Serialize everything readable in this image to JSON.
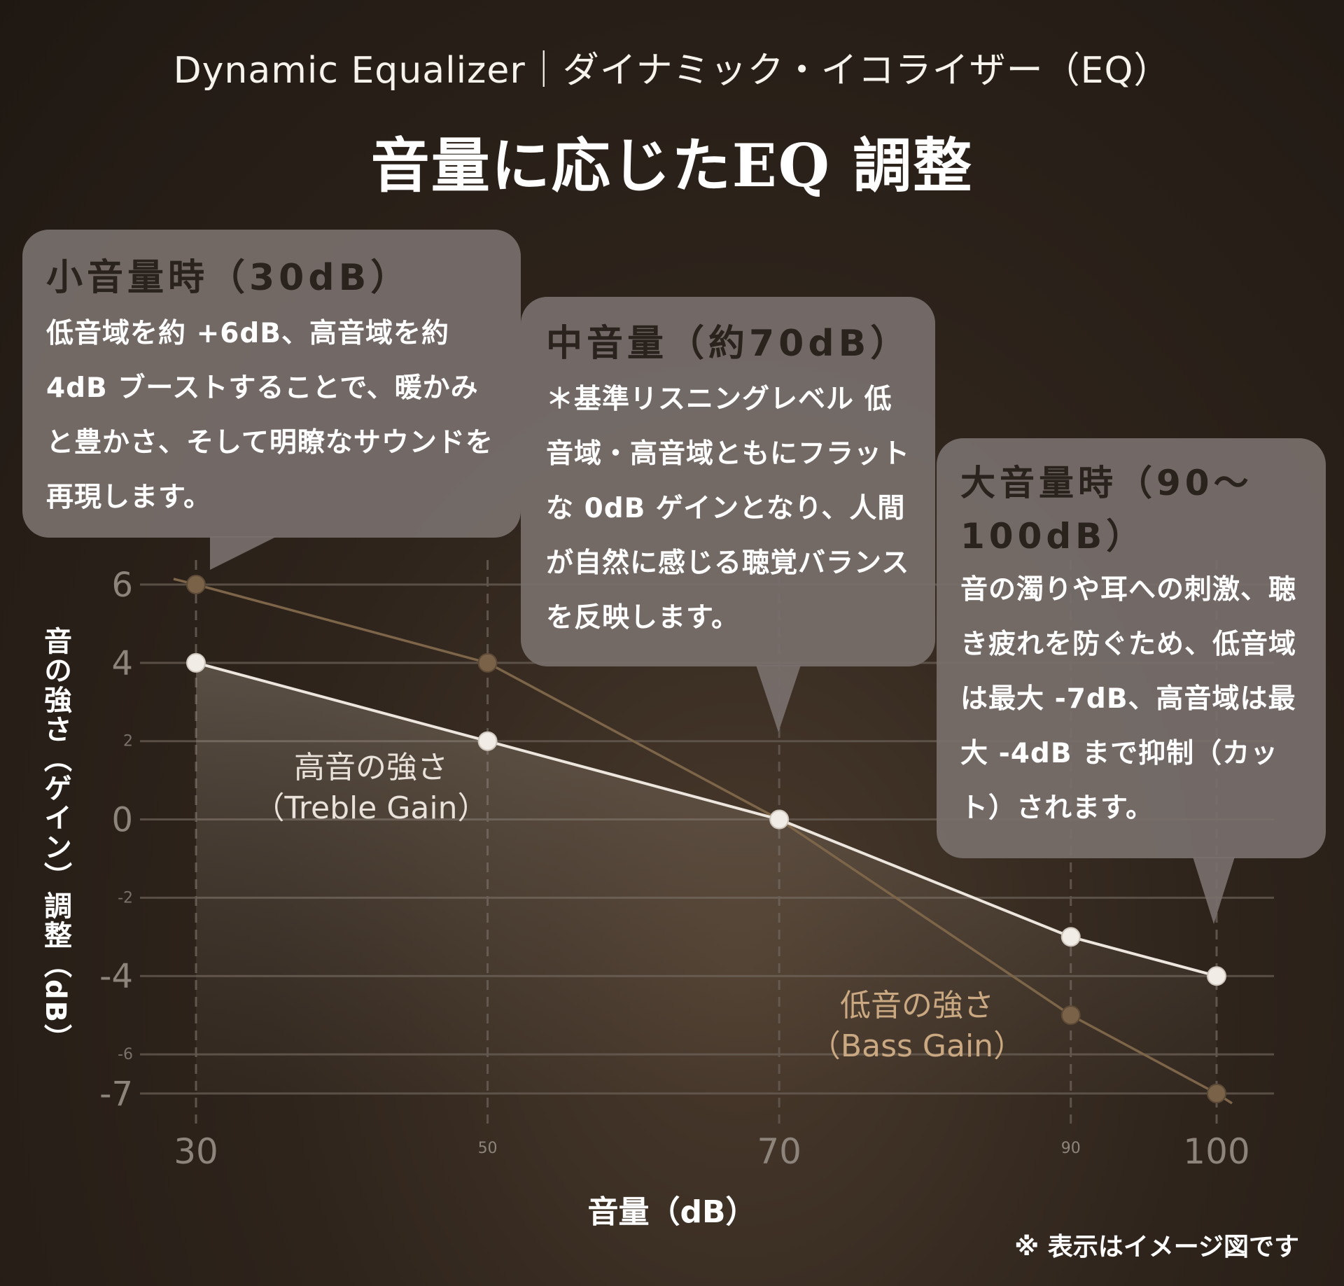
{
  "header": {
    "subtitle": "Dynamic Equalizer｜ダイナミック・イコライザー（EQ）",
    "title": "音量に応じたEQ 調整"
  },
  "bubbles": {
    "low": {
      "title": "小音量時（30dB）",
      "text": "低音域を約 +6dB、高音域を約 4dB ブーストすることで、暖かみと豊かさ、そして明瞭なサウンドを再現します。"
    },
    "mid": {
      "title": "中音量（約70dB）",
      "text": "＊基準リスニングレベル 低音域・高音域ともにフラットな 0dB ゲインとなり、人間が自然に感じる聴覚バランスを反映します。"
    },
    "high": {
      "title": "大音量時（90〜100dB）",
      "text": "音の濁りや耳への刺激、聴き疲れを防ぐため、低音域は最大 -7dB、高音域は最大 -4dB まで抑制（カット）されます。"
    }
  },
  "labels": {
    "treble_line1": "高音の強さ",
    "treble_line2": "（Treble Gain）",
    "bass_line1": "低音の強さ",
    "bass_line2": "（Bass Gain）",
    "note": "※ 表示はイメージ図です"
  },
  "colors": {
    "treble": "#ece6de",
    "bass": "#7d6549",
    "bubble": "#78706c"
  },
  "chart_data": {
    "type": "line",
    "xlabel": "音量（dB）",
    "ylabel": "音の強さ（ゲイン）調整（dB）",
    "x": [
      30,
      50,
      70,
      90,
      100
    ],
    "x_ticks": [
      "30",
      "50",
      "70",
      "90",
      "100"
    ],
    "y_ticks": [
      {
        "value": 6,
        "label": "6",
        "size": "large"
      },
      {
        "value": 4,
        "label": "4",
        "size": "large"
      },
      {
        "value": 2,
        "label": "2",
        "size": "small"
      },
      {
        "value": 0,
        "label": "0",
        "size": "large"
      },
      {
        "value": -2,
        "label": "-2",
        "size": "small"
      },
      {
        "value": -4,
        "label": "-4",
        "size": "large"
      },
      {
        "value": -6,
        "label": "-6",
        "size": "small"
      },
      {
        "value": -7,
        "label": "-7",
        "size": "large"
      }
    ],
    "xlim": [
      30,
      100
    ],
    "ylim": [
      -7,
      6
    ],
    "series": [
      {
        "name": "高音の強さ（Treble Gain）",
        "values": [
          4,
          2,
          0,
          -3,
          -4
        ]
      },
      {
        "name": "低音の強さ（Bass Gain）",
        "values": [
          6,
          4,
          0,
          -5,
          -7
        ]
      }
    ]
  }
}
